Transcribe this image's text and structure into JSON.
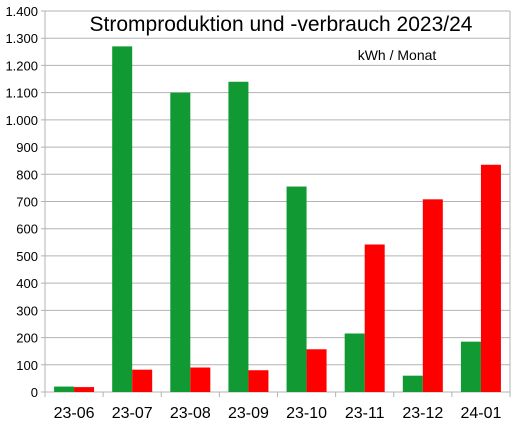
{
  "chart_data": {
    "type": "bar",
    "title": "Stromproduktion und -verbrauch 2023/24",
    "unit_label": "kWh / Monat",
    "categories": [
      "23-06",
      "23-07",
      "23-08",
      "23-09",
      "23-10",
      "23-11",
      "23-12",
      "24-01"
    ],
    "series": [
      {
        "values": [
          20,
          1270,
          1100,
          1140,
          755,
          215,
          60,
          185
        ],
        "color": "#119933"
      },
      {
        "values": [
          18,
          82,
          90,
          80,
          157,
          542,
          708,
          835
        ],
        "color": "#ff0000"
      }
    ],
    "ylim": [
      0,
      1400
    ],
    "yticks": [
      0,
      100,
      200,
      300,
      400,
      500,
      600,
      700,
      800,
      900,
      1000,
      1100,
      1200,
      1300,
      1400
    ],
    "ytick_labels": [
      "0",
      "100",
      "200",
      "300",
      "400",
      "500",
      "600",
      "700",
      "800",
      "900",
      "1.000",
      "1.100",
      "1.200",
      "1.300",
      "1.400"
    ],
    "grid": true,
    "legend": "none"
  }
}
